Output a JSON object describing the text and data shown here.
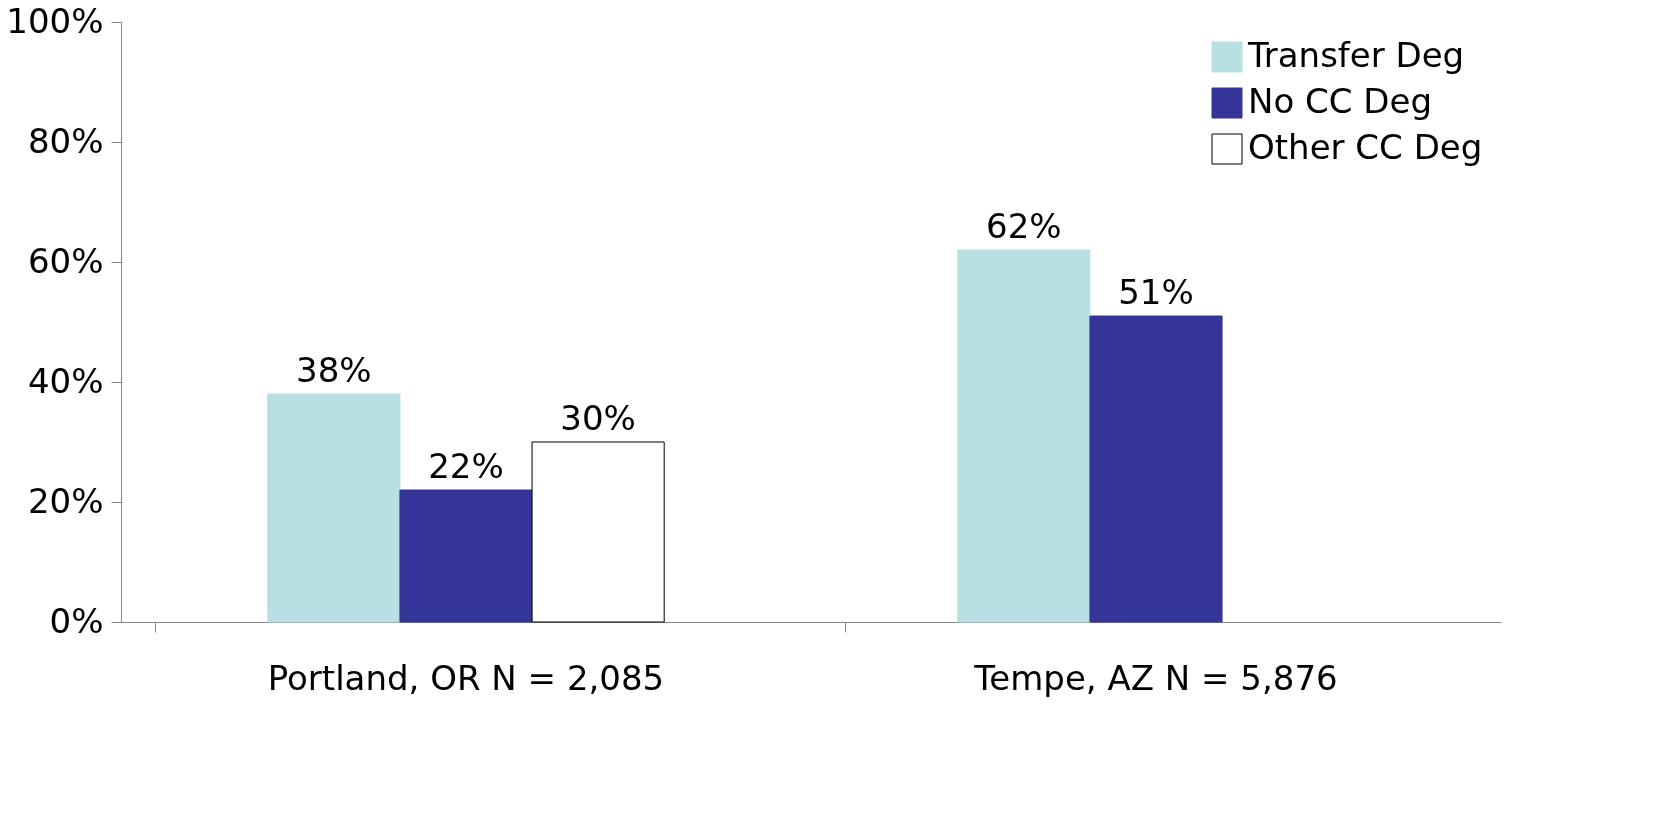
{
  "chart_data": {
    "type": "bar",
    "categories": [
      "Portland, OR  N = 2,085",
      "Tempe, AZ  N = 5,876"
    ],
    "series": [
      {
        "name": "Transfer Deg",
        "color": "#b8e0e2",
        "values": [
          38,
          62
        ],
        "value_labels": [
          "38%",
          "62%"
        ]
      },
      {
        "name": "No CC Deg",
        "color": "#353597",
        "values": [
          22,
          51
        ],
        "value_labels": [
          "22%",
          "51%"
        ]
      },
      {
        "name": "Other CC Deg",
        "color": "#ffffff",
        "values": [
          30,
          null
        ],
        "value_labels": [
          "30%",
          null
        ]
      }
    ],
    "ylim": [
      0,
      100
    ],
    "yticks": [
      {
        "value": 0,
        "label": "0%"
      },
      {
        "value": 20,
        "label": "20%"
      },
      {
        "value": 40,
        "label": "40%"
      },
      {
        "value": 60,
        "label": "60%"
      },
      {
        "value": 80,
        "label": "80%"
      },
      {
        "value": 100,
        "label": "100%"
      }
    ],
    "grid": false,
    "legend": "top right"
  }
}
